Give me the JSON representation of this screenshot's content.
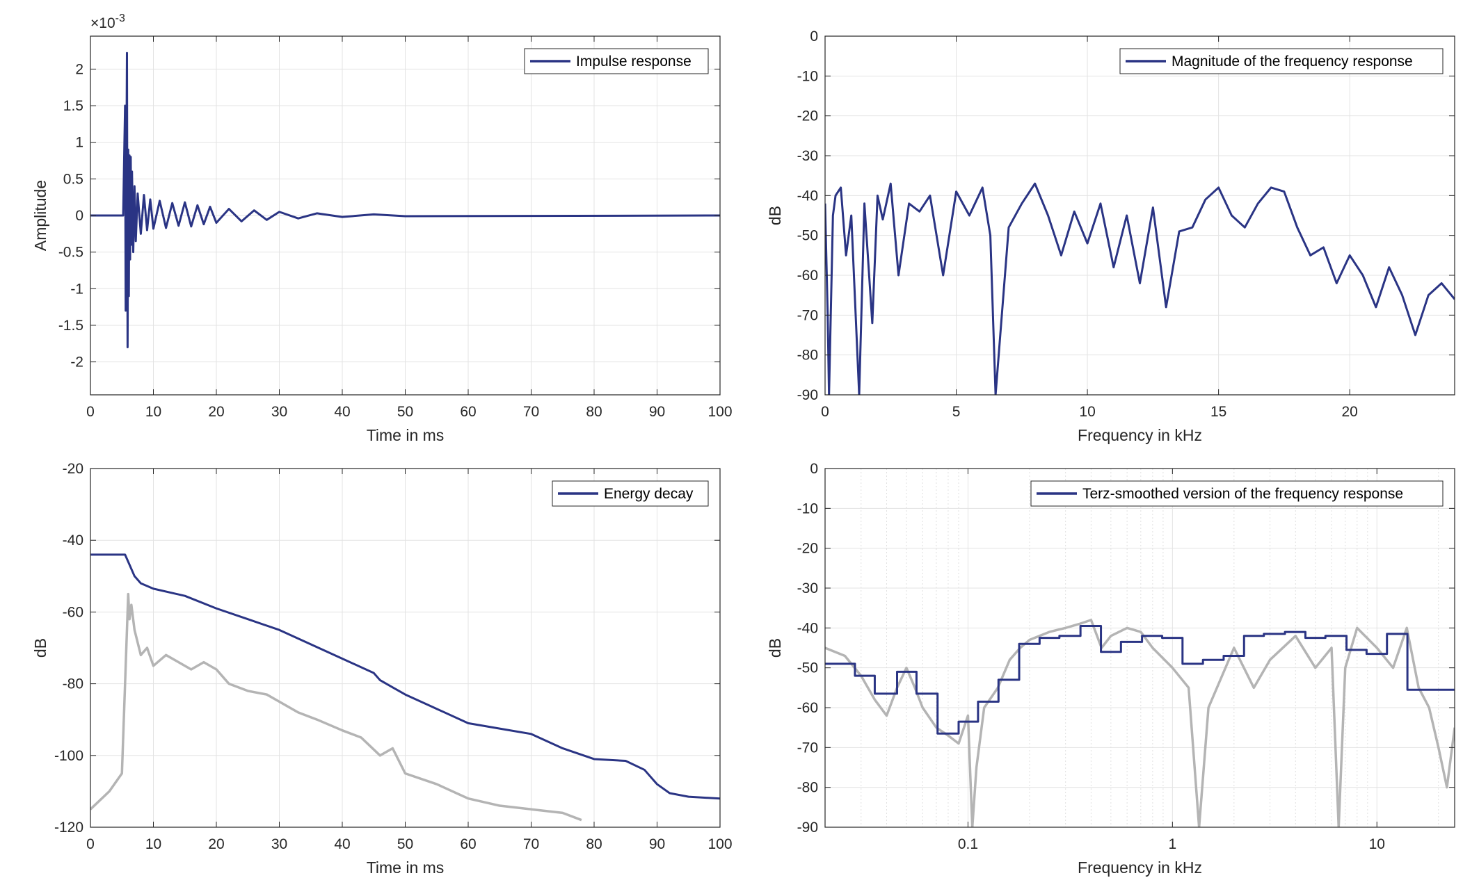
{
  "chart_data": [
    {
      "type": "line",
      "id": "impulse",
      "xlabel": "Time in ms",
      "ylabel": "Amplitude",
      "exponent_label": "×10",
      "exponent_power": "-3",
      "xlim": [
        0,
        100
      ],
      "ylim": [
        -2.45,
        2.45
      ],
      "xticks": [
        0,
        10,
        20,
        30,
        40,
        50,
        60,
        70,
        80,
        90,
        100
      ],
      "yticks": [
        -2,
        -1.5,
        -1,
        -0.5,
        0,
        0.5,
        1,
        1.5,
        2
      ],
      "grid": true,
      "legend_position": "top-right",
      "series": [
        {
          "name": "Impulse response",
          "color": "#2a3484",
          "x": [
            0,
            5.2,
            5.5,
            5.6,
            5.8,
            5.9,
            6.0,
            6.1,
            6.2,
            6.3,
            6.4,
            6.5,
            6.6,
            6.8,
            7.0,
            7.2,
            7.5,
            8.0,
            8.5,
            9.0,
            9.5,
            10,
            11,
            12,
            13,
            14,
            15,
            16,
            17,
            18,
            19,
            20,
            22,
            24,
            26,
            28,
            30,
            33,
            36,
            40,
            45,
            50,
            100
          ],
          "y": [
            0,
            0,
            1.5,
            -1.3,
            2.22,
            -1.8,
            0.9,
            -1.1,
            0.82,
            -0.6,
            0.8,
            -0.4,
            0.6,
            -0.5,
            0.4,
            -0.35,
            0.3,
            -0.25,
            0.28,
            -0.2,
            0.22,
            -0.18,
            0.2,
            -0.17,
            0.17,
            -0.14,
            0.18,
            -0.15,
            0.14,
            -0.12,
            0.12,
            -0.1,
            0.09,
            -0.08,
            0.07,
            -0.06,
            0.05,
            -0.04,
            0.03,
            -0.02,
            0.015,
            -0.01,
            0
          ]
        }
      ]
    },
    {
      "type": "line",
      "id": "magnitude",
      "xlabel": "Frequency in kHz",
      "ylabel": "dB",
      "xlim": [
        0,
        24
      ],
      "ylim": [
        -90,
        0
      ],
      "xticks": [
        0,
        5,
        10,
        15,
        20
      ],
      "yticks": [
        0,
        -10,
        -20,
        -30,
        -40,
        -50,
        -60,
        -70,
        -80,
        -90
      ],
      "grid": true,
      "legend_position": "top-right",
      "series": [
        {
          "name": "Magnitude of the frequency response",
          "color": "#2a3484",
          "x": [
            0.0,
            0.1,
            0.15,
            0.3,
            0.4,
            0.6,
            0.8,
            1.0,
            1.3,
            1.5,
            1.8,
            2.0,
            2.2,
            2.5,
            2.8,
            3.2,
            3.6,
            4.0,
            4.5,
            5.0,
            5.5,
            6.0,
            6.3,
            6.5,
            7.0,
            7.5,
            8.0,
            8.5,
            9.0,
            9.5,
            10.0,
            10.5,
            11.0,
            11.5,
            12.0,
            12.5,
            13.0,
            13.5,
            14.0,
            14.5,
            15.0,
            15.5,
            16.0,
            16.5,
            17.0,
            17.5,
            18.0,
            18.5,
            19.0,
            19.5,
            20.0,
            20.5,
            21.0,
            21.5,
            22.0,
            22.5,
            23.0,
            23.5,
            24.0
          ],
          "y": [
            -42,
            -70,
            -90,
            -45,
            -40,
            -38,
            -55,
            -45,
            -90,
            -42,
            -72,
            -40,
            -46,
            -37,
            -60,
            -42,
            -44,
            -40,
            -60,
            -39,
            -45,
            -38,
            -50,
            -90,
            -48,
            -42,
            -37,
            -45,
            -55,
            -44,
            -52,
            -42,
            -58,
            -45,
            -62,
            -43,
            -68,
            -49,
            -48,
            -41,
            -38,
            -45,
            -48,
            -42,
            -38,
            -39,
            -48,
            -55,
            -53,
            -62,
            -55,
            -60,
            -68,
            -58,
            -65,
            -75,
            -65,
            -62,
            -66
          ]
        }
      ]
    },
    {
      "type": "line",
      "id": "energy",
      "xlabel": "Time in ms",
      "ylabel": "dB",
      "xlim": [
        0,
        100
      ],
      "ylim": [
        -120,
        -20
      ],
      "xticks": [
        0,
        10,
        20,
        30,
        40,
        50,
        60,
        70,
        80,
        90,
        100
      ],
      "yticks": [
        -20,
        -40,
        -60,
        -80,
        -100,
        -120
      ],
      "grid": true,
      "legend_position": "top-right",
      "series": [
        {
          "name": "Energy decay",
          "color": "#2a3484",
          "x": [
            0,
            5.5,
            6,
            7,
            8,
            10,
            15,
            20,
            25,
            30,
            35,
            40,
            45,
            46,
            48,
            50,
            55,
            60,
            65,
            70,
            75,
            80,
            85,
            88,
            90,
            92,
            95,
            100
          ],
          "y": [
            -44,
            -44,
            -46,
            -50,
            -52,
            -53.5,
            -55.5,
            -59,
            -62,
            -65,
            -69,
            -73,
            -77,
            -79,
            -81,
            -83,
            -87,
            -91,
            -92.5,
            -94,
            -98,
            -101,
            -101.5,
            -104,
            -108,
            -110.5,
            -111.5,
            -112
          ]
        },
        {
          "name": "",
          "color": "#b4b4b4",
          "x": [
            0,
            3,
            5,
            5.5,
            6,
            6.2,
            6.5,
            7,
            8,
            9,
            10,
            12,
            14,
            16,
            18,
            20,
            22,
            25,
            28,
            30,
            33,
            36,
            40,
            43,
            46,
            48,
            50,
            55,
            60,
            65,
            70,
            75,
            78
          ],
          "y": [
            -115,
            -110,
            -105,
            -80,
            -55,
            -62,
            -58,
            -65,
            -72,
            -70,
            -75,
            -72,
            -74,
            -76,
            -74,
            -76,
            -80,
            -82,
            -83,
            -85,
            -88,
            -90,
            -93,
            -95,
            -100,
            -98,
            -105,
            -108,
            -112,
            -114,
            -115,
            -116,
            -118
          ]
        }
      ]
    },
    {
      "type": "line",
      "id": "terz",
      "xlabel": "Frequency in kHz",
      "ylabel": "dB",
      "xscale": "log",
      "xlim": [
        0.02,
        24
      ],
      "ylim": [
        -90,
        0
      ],
      "xticks": [
        0.1,
        1,
        10
      ],
      "xticklabels": [
        "0.1",
        "1",
        "10"
      ],
      "yticks": [
        0,
        -10,
        -20,
        -30,
        -40,
        -50,
        -60,
        -70,
        -80,
        -90
      ],
      "grid": true,
      "legend_position": "top-right",
      "series": [
        {
          "name": "Terz-smoothed version of the frequency response",
          "color": "#2a3484",
          "x": [
            0.02,
            0.028,
            0.028,
            0.035,
            0.035,
            0.045,
            0.045,
            0.056,
            0.056,
            0.071,
            0.071,
            0.09,
            0.09,
            0.112,
            0.112,
            0.141,
            0.141,
            0.178,
            0.178,
            0.224,
            0.224,
            0.28,
            0.28,
            0.355,
            0.355,
            0.447,
            0.447,
            0.56,
            0.56,
            0.71,
            0.71,
            0.89,
            0.89,
            1.12,
            1.12,
            1.41,
            1.41,
            1.78,
            1.78,
            2.24,
            2.24,
            2.8,
            2.8,
            3.55,
            3.55,
            4.47,
            4.47,
            5.6,
            5.6,
            7.1,
            7.1,
            8.9,
            8.9,
            11.2,
            11.2,
            14.1,
            14.1,
            17.8,
            17.8,
            24
          ],
          "y": [
            -49,
            -49,
            -52,
            -52,
            -56.5,
            -56.5,
            -51,
            -51,
            -56.5,
            -56.5,
            -66.5,
            -66.5,
            -63.5,
            -63.5,
            -58.5,
            -58.5,
            -53,
            -53,
            -44,
            -44,
            -42.5,
            -42.5,
            -42,
            -42,
            -39.5,
            -39.5,
            -46,
            -46,
            -43.5,
            -43.5,
            -42,
            -42,
            -42.5,
            -42.5,
            -49,
            -49,
            -48,
            -48,
            -47,
            -47,
            -42,
            -42,
            -41.5,
            -41.5,
            -41,
            -41,
            -42.5,
            -42.5,
            -42,
            -42,
            -45.5,
            -45.5,
            -46.5,
            -46.5,
            -41.5,
            -41.5,
            -55.5,
            -55.5,
            -55.5,
            -55.5
          ]
        },
        {
          "name": "",
          "color": "#b4b4b4",
          "x": [
            0.02,
            0.025,
            0.03,
            0.035,
            0.04,
            0.045,
            0.05,
            0.055,
            0.06,
            0.07,
            0.08,
            0.09,
            0.1,
            0.105,
            0.11,
            0.12,
            0.14,
            0.16,
            0.18,
            0.2,
            0.25,
            0.3,
            0.35,
            0.4,
            0.45,
            0.5,
            0.6,
            0.7,
            0.8,
            1.0,
            1.2,
            1.35,
            1.5,
            2.0,
            2.5,
            3.0,
            4.0,
            5.0,
            6.0,
            6.5,
            7.0,
            8.0,
            10.0,
            12.0,
            14.0,
            16.0,
            18.0,
            20.0,
            22.0,
            24.0
          ],
          "y": [
            -45,
            -47,
            -52,
            -58,
            -62,
            -55,
            -50,
            -55,
            -60,
            -65,
            -67,
            -69,
            -62,
            -90,
            -75,
            -60,
            -55,
            -48,
            -45,
            -43,
            -41,
            -40,
            -39,
            -38,
            -45,
            -42,
            -40,
            -41,
            -45,
            -50,
            -55,
            -90,
            -60,
            -45,
            -55,
            -48,
            -42,
            -50,
            -45,
            -90,
            -50,
            -40,
            -45,
            -50,
            -40,
            -55,
            -60,
            -70,
            -80,
            -65
          ]
        }
      ]
    }
  ]
}
